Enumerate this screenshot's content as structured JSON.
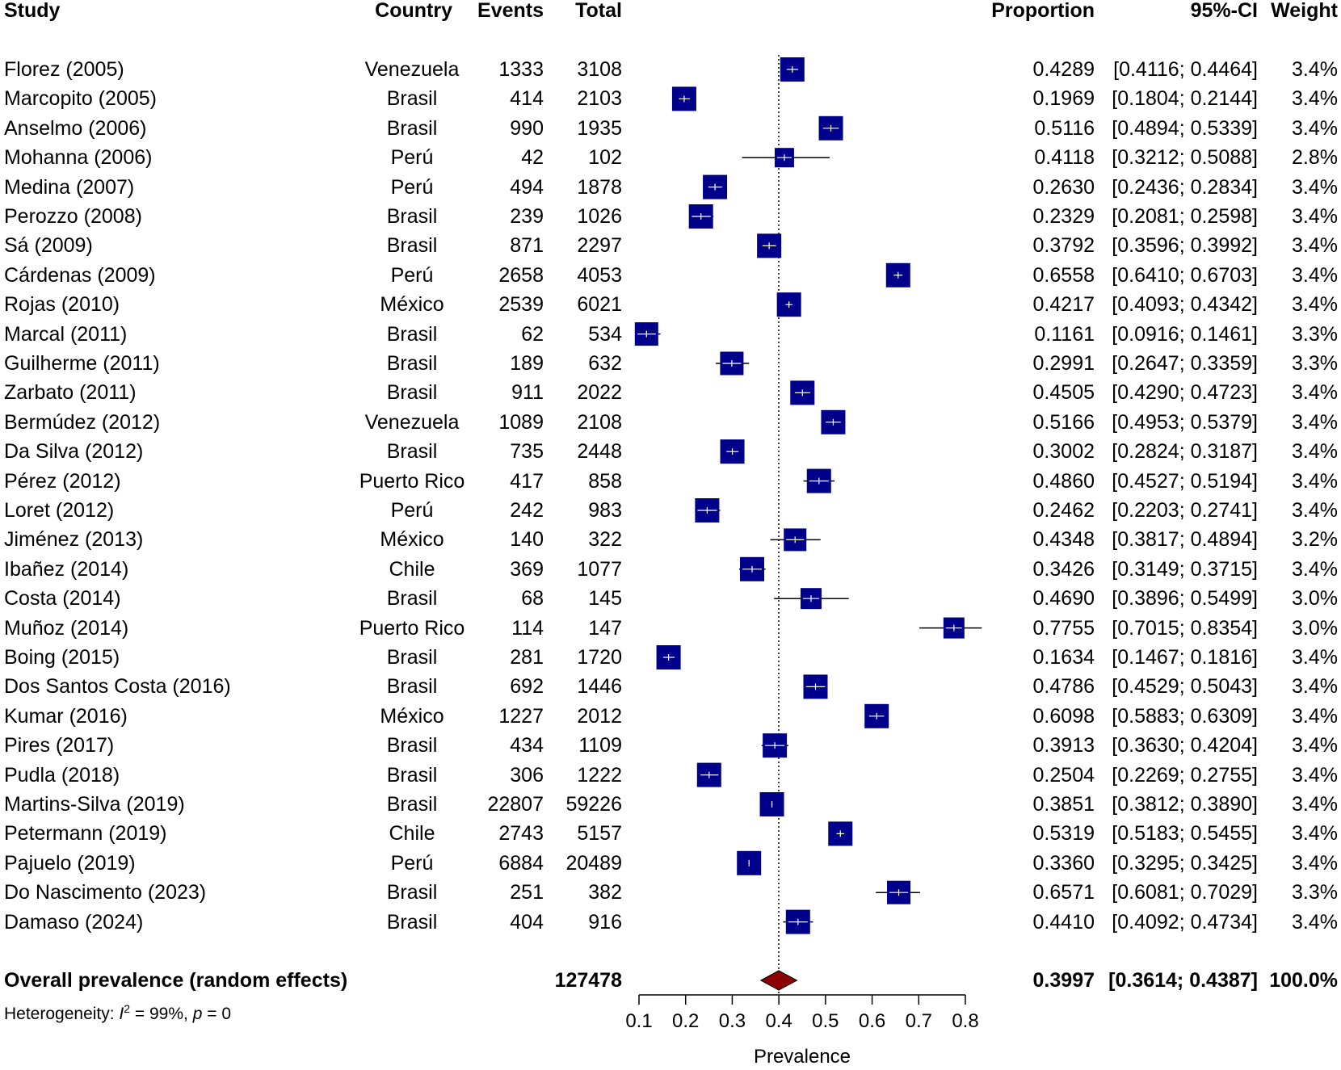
{
  "headers": {
    "study": "Study",
    "country": "Country",
    "events": "Events",
    "total": "Total",
    "proportion": "Proportion",
    "ci": "95%-CI",
    "weight": "Weight"
  },
  "studies": [
    {
      "study": "Florez (2005)",
      "country": "Venezuela",
      "events": "1333",
      "total": "3108",
      "proportion": "0.4289",
      "ci": "[0.4116; 0.4464]",
      "weight": "3.4%"
    },
    {
      "study": "Marcopito (2005)",
      "country": "Brasil",
      "events": "414",
      "total": "2103",
      "proportion": "0.1969",
      "ci": "[0.1804; 0.2144]",
      "weight": "3.4%"
    },
    {
      "study": "Anselmo (2006)",
      "country": "Brasil",
      "events": "990",
      "total": "1935",
      "proportion": "0.5116",
      "ci": "[0.4894; 0.5339]",
      "weight": "3.4%"
    },
    {
      "study": "Mohanna (2006)",
      "country": "Perú",
      "events": "42",
      "total": "102",
      "proportion": "0.4118",
      "ci": "[0.3212; 0.5088]",
      "weight": "2.8%"
    },
    {
      "study": "Medina (2007)",
      "country": "Perú",
      "events": "494",
      "total": "1878",
      "proportion": "0.2630",
      "ci": "[0.2436; 0.2834]",
      "weight": "3.4%"
    },
    {
      "study": "Perozzo (2008)",
      "country": "Brasil",
      "events": "239",
      "total": "1026",
      "proportion": "0.2329",
      "ci": "[0.2081; 0.2598]",
      "weight": "3.4%"
    },
    {
      "study": "Sá (2009)",
      "country": "Brasil",
      "events": "871",
      "total": "2297",
      "proportion": "0.3792",
      "ci": "[0.3596; 0.3992]",
      "weight": "3.4%"
    },
    {
      "study": "Cárdenas (2009)",
      "country": "Perú",
      "events": "2658",
      "total": "4053",
      "proportion": "0.6558",
      "ci": "[0.6410; 0.6703]",
      "weight": "3.4%"
    },
    {
      "study": "Rojas (2010)",
      "country": "México",
      "events": "2539",
      "total": "6021",
      "proportion": "0.4217",
      "ci": "[0.4093; 0.4342]",
      "weight": "3.4%"
    },
    {
      "study": "Marcal (2011)",
      "country": "Brasil",
      "events": "62",
      "total": "534",
      "proportion": "0.1161",
      "ci": "[0.0916; 0.1461]",
      "weight": "3.3%"
    },
    {
      "study": "Guilherme (2011)",
      "country": "Brasil",
      "events": "189",
      "total": "632",
      "proportion": "0.2991",
      "ci": "[0.2647; 0.3359]",
      "weight": "3.3%"
    },
    {
      "study": "Zarbato (2011)",
      "country": "Brasil",
      "events": "911",
      "total": "2022",
      "proportion": "0.4505",
      "ci": "[0.4290; 0.4723]",
      "weight": "3.4%"
    },
    {
      "study": "Bermúdez (2012)",
      "country": "Venezuela",
      "events": "1089",
      "total": "2108",
      "proportion": "0.5166",
      "ci": "[0.4953; 0.5379]",
      "weight": "3.4%"
    },
    {
      "study": "Da Silva (2012)",
      "country": "Brasil",
      "events": "735",
      "total": "2448",
      "proportion": "0.3002",
      "ci": "[0.2824; 0.3187]",
      "weight": "3.4%"
    },
    {
      "study": "Pérez (2012)",
      "country": "Puerto Rico",
      "events": "417",
      "total": "858",
      "proportion": "0.4860",
      "ci": "[0.4527; 0.5194]",
      "weight": "3.4%"
    },
    {
      "study": "Loret (2012)",
      "country": "Perú",
      "events": "242",
      "total": "983",
      "proportion": "0.2462",
      "ci": "[0.2203; 0.2741]",
      "weight": "3.4%"
    },
    {
      "study": "Jiménez (2013)",
      "country": "México",
      "events": "140",
      "total": "322",
      "proportion": "0.4348",
      "ci": "[0.3817; 0.4894]",
      "weight": "3.2%"
    },
    {
      "study": "Ibañez (2014)",
      "country": "Chile",
      "events": "369",
      "total": "1077",
      "proportion": "0.3426",
      "ci": "[0.3149; 0.3715]",
      "weight": "3.4%"
    },
    {
      "study": "Costa (2014)",
      "country": "Brasil",
      "events": "68",
      "total": "145",
      "proportion": "0.4690",
      "ci": "[0.3896; 0.5499]",
      "weight": "3.0%"
    },
    {
      "study": "Muñoz (2014)",
      "country": "Puerto Rico",
      "events": "114",
      "total": "147",
      "proportion": "0.7755",
      "ci": "[0.7015; 0.8354]",
      "weight": "3.0%"
    },
    {
      "study": "Boing (2015)",
      "country": "Brasil",
      "events": "281",
      "total": "1720",
      "proportion": "0.1634",
      "ci": "[0.1467; 0.1816]",
      "weight": "3.4%"
    },
    {
      "study": "Dos Santos Costa (2016)",
      "country": "Brasil",
      "events": "692",
      "total": "1446",
      "proportion": "0.4786",
      "ci": "[0.4529; 0.5043]",
      "weight": "3.4%"
    },
    {
      "study": "Kumar (2016)",
      "country": "México",
      "events": "1227",
      "total": "2012",
      "proportion": "0.6098",
      "ci": "[0.5883; 0.6309]",
      "weight": "3.4%"
    },
    {
      "study": "Pires (2017)",
      "country": "Brasil",
      "events": "434",
      "total": "1109",
      "proportion": "0.3913",
      "ci": "[0.3630; 0.4204]",
      "weight": "3.4%"
    },
    {
      "study": "Pudla (2018)",
      "country": "Brasil",
      "events": "306",
      "total": "1222",
      "proportion": "0.2504",
      "ci": "[0.2269; 0.2755]",
      "weight": "3.4%"
    },
    {
      "study": "Martins-Silva (2019)",
      "country": "Brasil",
      "events": "22807",
      "total": "59226",
      "proportion": "0.3851",
      "ci": "[0.3812; 0.3890]",
      "weight": "3.4%"
    },
    {
      "study": "Petermann (2019)",
      "country": "Chile",
      "events": "2743",
      "total": "5157",
      "proportion": "0.5319",
      "ci": "[0.5183; 0.5455]",
      "weight": "3.4%"
    },
    {
      "study": "Pajuelo (2019)",
      "country": "Perú",
      "events": "6884",
      "total": "20489",
      "proportion": "0.3360",
      "ci": "[0.3295; 0.3425]",
      "weight": "3.4%"
    },
    {
      "study": "Do Nascimento (2023)",
      "country": "Brasil",
      "events": "251",
      "total": "382",
      "proportion": "0.6571",
      "ci": "[0.6081; 0.7029]",
      "weight": "3.3%"
    },
    {
      "study": "Damaso (2024)",
      "country": "Brasil",
      "events": "404",
      "total": "916",
      "proportion": "0.4410",
      "ci": "[0.4092; 0.4734]",
      "weight": "3.4%"
    }
  ],
  "overall": {
    "label": "Overall prevalence (random effects)",
    "total": "127478",
    "proportion": "0.3997",
    "ci": "[0.3614; 0.4387]",
    "weight": "100.0%"
  },
  "heterogeneity": {
    "prefix": "Heterogeneity: ",
    "i_symbol": "I",
    "sup": "2",
    "middle": " = 99%, ",
    "p_symbol": "p",
    "suffix": " = 0"
  },
  "colors": {
    "square": "#00008B",
    "diamond": "#8B0000",
    "line": "#000000"
  },
  "chart_data": {
    "type": "forest",
    "xlabel": "Prevalence",
    "xlim": [
      0.1,
      0.8
    ],
    "ticks": [
      0.1,
      0.2,
      0.3,
      0.4,
      0.5,
      0.6,
      0.7,
      0.8
    ],
    "tick_labels": [
      "0.1",
      "0.2",
      "0.3",
      "0.4",
      "0.5",
      "0.6",
      "0.7",
      "0.8"
    ],
    "reference_line": 0.3997,
    "points": [
      {
        "est": 0.4289,
        "lo": 0.4116,
        "hi": 0.4464,
        "w": 3.4
      },
      {
        "est": 0.1969,
        "lo": 0.1804,
        "hi": 0.2144,
        "w": 3.4
      },
      {
        "est": 0.5116,
        "lo": 0.4894,
        "hi": 0.5339,
        "w": 3.4
      },
      {
        "est": 0.4118,
        "lo": 0.3212,
        "hi": 0.5088,
        "w": 2.8
      },
      {
        "est": 0.263,
        "lo": 0.2436,
        "hi": 0.2834,
        "w": 3.4
      },
      {
        "est": 0.2329,
        "lo": 0.2081,
        "hi": 0.2598,
        "w": 3.4
      },
      {
        "est": 0.3792,
        "lo": 0.3596,
        "hi": 0.3992,
        "w": 3.4
      },
      {
        "est": 0.6558,
        "lo": 0.641,
        "hi": 0.6703,
        "w": 3.4
      },
      {
        "est": 0.4217,
        "lo": 0.4093,
        "hi": 0.4342,
        "w": 3.4
      },
      {
        "est": 0.1161,
        "lo": 0.0916,
        "hi": 0.1461,
        "w": 3.3
      },
      {
        "est": 0.2991,
        "lo": 0.2647,
        "hi": 0.3359,
        "w": 3.3
      },
      {
        "est": 0.4505,
        "lo": 0.429,
        "hi": 0.4723,
        "w": 3.4
      },
      {
        "est": 0.5166,
        "lo": 0.4953,
        "hi": 0.5379,
        "w": 3.4
      },
      {
        "est": 0.3002,
        "lo": 0.2824,
        "hi": 0.3187,
        "w": 3.4
      },
      {
        "est": 0.486,
        "lo": 0.4527,
        "hi": 0.5194,
        "w": 3.4
      },
      {
        "est": 0.2462,
        "lo": 0.2203,
        "hi": 0.2741,
        "w": 3.4
      },
      {
        "est": 0.4348,
        "lo": 0.3817,
        "hi": 0.4894,
        "w": 3.2
      },
      {
        "est": 0.3426,
        "lo": 0.3149,
        "hi": 0.3715,
        "w": 3.4
      },
      {
        "est": 0.469,
        "lo": 0.3896,
        "hi": 0.5499,
        "w": 3.0
      },
      {
        "est": 0.7755,
        "lo": 0.7015,
        "hi": 0.8354,
        "w": 3.0
      },
      {
        "est": 0.1634,
        "lo": 0.1467,
        "hi": 0.1816,
        "w": 3.4
      },
      {
        "est": 0.4786,
        "lo": 0.4529,
        "hi": 0.5043,
        "w": 3.4
      },
      {
        "est": 0.6098,
        "lo": 0.5883,
        "hi": 0.6309,
        "w": 3.4
      },
      {
        "est": 0.3913,
        "lo": 0.363,
        "hi": 0.4204,
        "w": 3.4
      },
      {
        "est": 0.2504,
        "lo": 0.2269,
        "hi": 0.2755,
        "w": 3.4
      },
      {
        "est": 0.3851,
        "lo": 0.3812,
        "hi": 0.389,
        "w": 3.4
      },
      {
        "est": 0.5319,
        "lo": 0.5183,
        "hi": 0.5455,
        "w": 3.4
      },
      {
        "est": 0.336,
        "lo": 0.3295,
        "hi": 0.3425,
        "w": 3.4
      },
      {
        "est": 0.6571,
        "lo": 0.6081,
        "hi": 0.7029,
        "w": 3.3
      },
      {
        "est": 0.441,
        "lo": 0.4092,
        "hi": 0.4734,
        "w": 3.4
      }
    ],
    "overall": {
      "est": 0.3997,
      "lo": 0.3614,
      "hi": 0.4387
    }
  }
}
